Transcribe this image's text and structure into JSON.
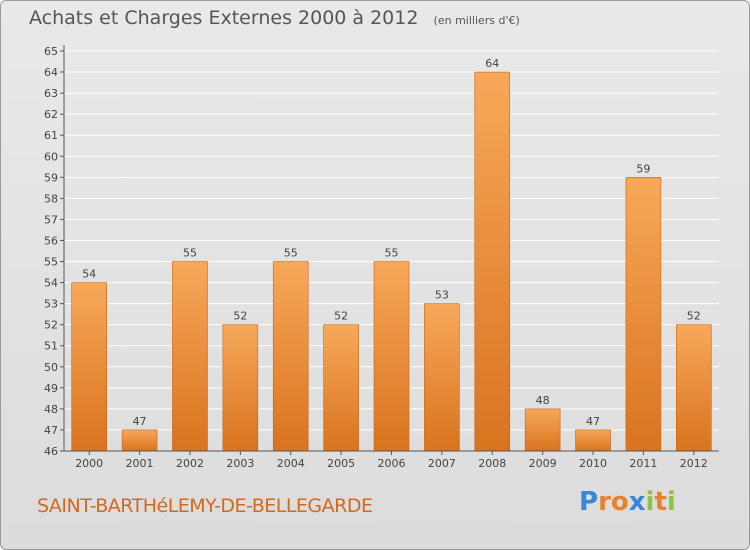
{
  "header": {
    "title": "Achats et Charges Externes 2000 à 2012",
    "unit": "(en milliers d'€)"
  },
  "footer": {
    "place": "SAINT-BARTHéLEMY-DE-BELLEGARDE",
    "logo_text": "Proxiti",
    "logo_colors": [
      "#3a86d8",
      "#e8812b",
      "#e8812b",
      "#3a86d8",
      "#8cc63f",
      "#e8812b",
      "#8cc63f"
    ]
  },
  "colors": {
    "bar_top": "#f7a85a",
    "bar_bottom": "#d9731e",
    "bar_edge": "#c8651a",
    "grid": "#ffffff",
    "axis": "#555555"
  },
  "chart_data": {
    "type": "bar",
    "title": "Achats et Charges Externes 2000 à 2012",
    "subtitle": "(en milliers d'€)",
    "categories": [
      "2000",
      "2001",
      "2002",
      "2003",
      "2004",
      "2005",
      "2006",
      "2007",
      "2008",
      "2009",
      "2010",
      "2011",
      "2012"
    ],
    "values": [
      54,
      47,
      55,
      52,
      55,
      52,
      55,
      53,
      64,
      48,
      47,
      59,
      52
    ],
    "xlabel": "",
    "ylabel": "",
    "ylim": [
      46,
      65
    ],
    "yticks": [
      46,
      47,
      48,
      49,
      50,
      51,
      52,
      53,
      54,
      55,
      56,
      57,
      58,
      59,
      60,
      61,
      62,
      63,
      64,
      65
    ],
    "grid": true,
    "data_labels": true
  }
}
